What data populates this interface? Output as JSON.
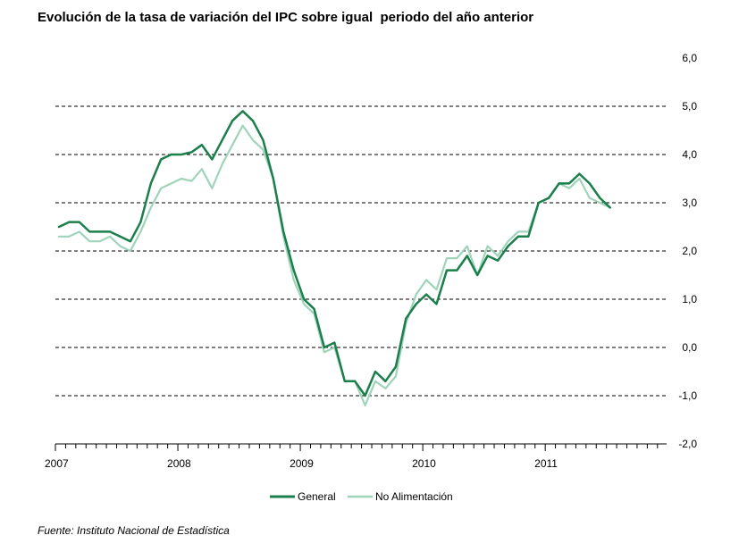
{
  "chart_data": {
    "type": "line",
    "title": "Evolución de la tasa de variación del IPC sobre igual  periodo del año anterior",
    "source": "Fuente: Instituto Nacional de Estadística",
    "xlabel": "",
    "ylabel": "",
    "ylim": [
      -2,
      6
    ],
    "yticks": [
      "6,0",
      "5,0",
      "4,0",
      "3,0",
      "2,0",
      "1,0",
      "0,0",
      "-1,0",
      "-2,0"
    ],
    "ytick_values": [
      6,
      5,
      4,
      3,
      2,
      1,
      0,
      -1,
      -2
    ],
    "xtick_labels": [
      "2007",
      "2008",
      "2009",
      "2010",
      "2011"
    ],
    "months_per_year": 12,
    "grid": "horizontal-dashed",
    "legend_position": "bottom",
    "series": [
      {
        "name": "General",
        "color": "#1a7f4b",
        "values": [
          2.4,
          2.5,
          2.5,
          2.4,
          2.3,
          2.4,
          2.2,
          2.2,
          2.7,
          3.6,
          4.1,
          4.2,
          4.3,
          4.4,
          4.5,
          4.2,
          4.6,
          5.0,
          5.3,
          4.9,
          4.5,
          3.6,
          2.4,
          1.4,
          0.8,
          0.7,
          -0.1,
          -0.2,
          -0.9,
          -1.0,
          -1.4,
          -0.8,
          -1.0,
          -0.7,
          0.3,
          0.8,
          1.0,
          0.8,
          1.4,
          1.5,
          1.8,
          1.5,
          1.9,
          1.8,
          2.1,
          2.3,
          2.3,
          3.0,
          3.3,
          3.6,
          3.6,
          3.8,
          3.5,
          3.2,
          3.1
        ],
        "values_note_visible": "",
        "display": [
          2.5,
          2.6,
          2.6,
          2.4,
          2.4,
          2.4,
          2.3,
          2.2,
          2.6,
          3.4,
          3.9,
          4.0,
          4.0,
          4.05,
          4.2,
          3.9,
          4.3,
          4.7,
          4.9,
          4.7,
          4.3,
          3.5,
          2.4,
          1.6,
          1.0,
          0.8,
          0.0,
          0.1,
          -0.7,
          -0.7,
          -1.0,
          -0.5,
          -0.7,
          -0.4,
          0.6,
          0.9,
          1.1,
          0.9,
          1.6,
          1.6,
          1.9,
          1.5,
          1.9,
          1.8,
          2.1,
          2.3,
          2.3,
          3.0,
          3.1,
          3.4,
          3.4,
          3.6,
          3.4,
          3.1,
          2.9
        ]
      },
      {
        "name": "No Alimentación",
        "color": "#9fd4bb",
        "display": [
          2.3,
          2.3,
          2.4,
          2.2,
          2.2,
          2.3,
          2.1,
          2.0,
          2.4,
          2.9,
          3.3,
          3.4,
          3.5,
          3.45,
          3.7,
          3.3,
          3.8,
          4.2,
          4.6,
          4.3,
          4.1,
          3.5,
          2.3,
          1.4,
          0.9,
          0.7,
          -0.1,
          0.0,
          -0.7,
          -0.7,
          -1.2,
          -0.7,
          -0.85,
          -0.6,
          0.5,
          1.1,
          1.4,
          1.2,
          1.85,
          1.85,
          2.1,
          1.5,
          2.1,
          1.9,
          2.2,
          2.4,
          2.4,
          3.0,
          3.1,
          3.4,
          3.3,
          3.5,
          3.1,
          3.0,
          2.9
        ]
      }
    ]
  }
}
